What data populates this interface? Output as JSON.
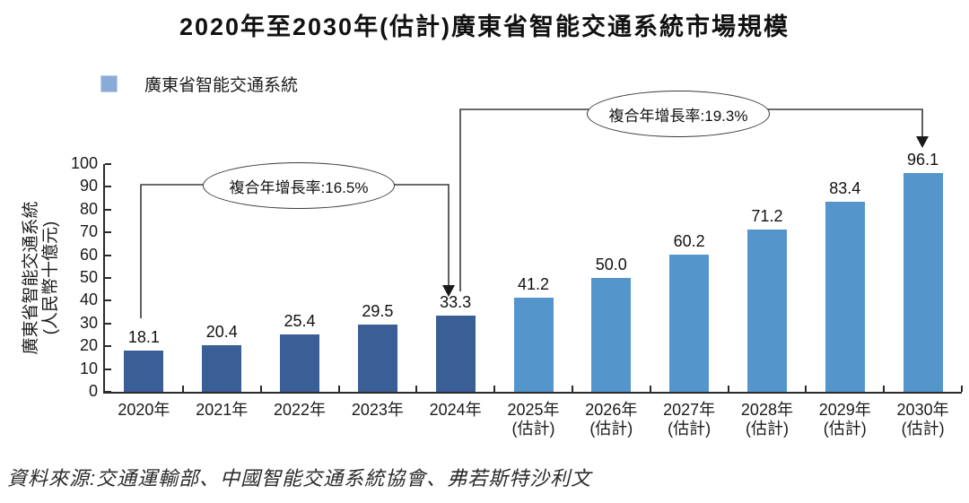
{
  "title": "2020年至2030年(估計)廣東省智能交通系統市場規模",
  "legend": {
    "label": "廣東省智能交通系統"
  },
  "y_axis": {
    "title_line1": "廣東省智能交通系統",
    "title_line2": "(人民幣十億元)"
  },
  "annotations": {
    "cagr_2020_2024": "複合年增長率:16.5%",
    "cagr_2024_2030": "複合年增長率:19.3%"
  },
  "source": "資料來源:交通運輸部、中國智能交通系統協會、弗若斯特沙利文",
  "colors": {
    "bar_actual": "#3A5E96",
    "bar_estimate": "#5496CC",
    "legend_swatch": "#8AABD8",
    "axis": "#2A2A2C"
  },
  "chart_data": {
    "type": "bar",
    "title": "2020年至2030年(估計)廣東省智能交通系統市場規模",
    "series_name": "廣東省智能交通系統",
    "categories": [
      "2020年",
      "2021年",
      "2022年",
      "2023年",
      "2024年",
      "2025年\n(估計)",
      "2026年\n(估計)",
      "2027年\n(估計)",
      "2028年\n(估計)",
      "2029年\n(估計)",
      "2030年\n(估計)"
    ],
    "values": [
      18.1,
      20.4,
      25.4,
      29.5,
      33.3,
      41.2,
      50.0,
      60.2,
      71.2,
      83.4,
      96.1
    ],
    "value_labels": [
      "18.1",
      "20.4",
      "25.4",
      "29.5",
      "33.3",
      "41.2",
      "50.0",
      "60.2",
      "71.2",
      "83.4",
      "96.1"
    ],
    "unit": "人民幣十億元",
    "ylabel": "廣東省智能交通系統(人民幣十億元)",
    "ylim": [
      0,
      100
    ],
    "yticks": [
      0,
      10,
      20,
      30,
      40,
      50,
      60,
      70,
      80,
      90,
      100
    ],
    "estimate_start_index": 5,
    "grid": false,
    "legend_position": "top-left",
    "annotations": [
      {
        "text": "複合年增長率:16.5%",
        "from_category": "2020年",
        "to_category": "2024年"
      },
      {
        "text": "複合年增長率:19.3%",
        "from_category": "2024年",
        "to_category": "2030年(估計)"
      }
    ]
  }
}
